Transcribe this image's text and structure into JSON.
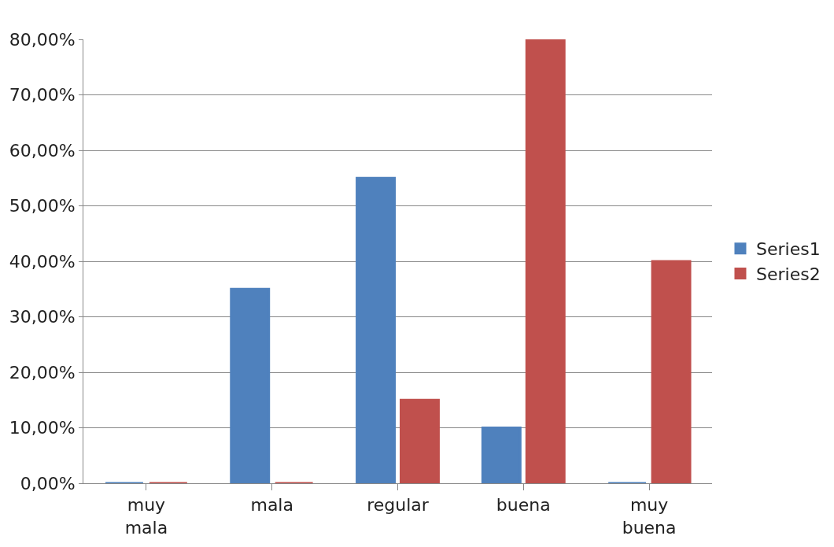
{
  "chart_data": {
    "type": "bar",
    "categories": [
      "muy mala",
      "mala",
      "regular",
      "buena",
      "muy buena"
    ],
    "series": [
      {
        "name": "Series1",
        "color": "#4f81bd",
        "values": [
          0,
          35,
          55,
          10,
          0
        ]
      },
      {
        "name": "Series2",
        "color": "#c0504d",
        "values": [
          0,
          0,
          15,
          80,
          40
        ]
      }
    ],
    "ylim": [
      0,
      80
    ],
    "yticks": [
      {
        "value": 0,
        "label": "0,00%"
      },
      {
        "value": 10,
        "label": "10,00%"
      },
      {
        "value": 20,
        "label": "20,00%"
      },
      {
        "value": 30,
        "label": "30,00%"
      },
      {
        "value": 40,
        "label": "40,00%"
      },
      {
        "value": 50,
        "label": "50,00%"
      },
      {
        "value": 60,
        "label": "60,00%"
      },
      {
        "value": 70,
        "label": "70,00%"
      },
      {
        "value": 80,
        "label": "80,00%"
      }
    ],
    "grid": "y",
    "legend": "right"
  }
}
